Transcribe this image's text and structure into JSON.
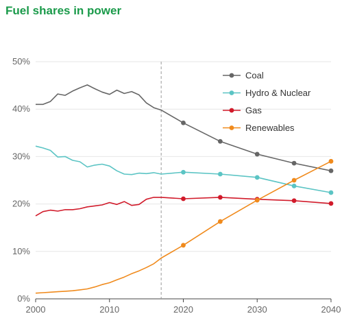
{
  "title": "Fuel shares in power",
  "colors": {
    "title": "#1a9a4a",
    "axis": "#444444",
    "grid": "#e6e6e6",
    "divider": "#999999",
    "coal": "#666666",
    "hydro": "#5bc4c4",
    "gas": "#d11a2a",
    "renewables": "#f08a1c"
  },
  "chart_data": {
    "type": "line",
    "title": "Fuel shares in power",
    "xlim": [
      2000,
      2040
    ],
    "ylim": [
      0,
      50
    ],
    "x_ticks": [
      2000,
      2010,
      2020,
      2030,
      2040
    ],
    "y_ticks": [
      0,
      10,
      20,
      30,
      40,
      50
    ],
    "x_tick_labels": [
      "2000",
      "2010",
      "2020",
      "2030",
      "2040"
    ],
    "y_tick_labels": [
      "0%",
      "10%",
      "20%",
      "30%",
      "40%",
      "50%"
    ],
    "divider_x": 2017,
    "grid": "horizontal",
    "legend_position": "top-right",
    "series": [
      {
        "name": "Coal",
        "color_key": "coal",
        "historical": [
          [
            2000,
            41.0
          ],
          [
            2001,
            41.0
          ],
          [
            2002,
            41.6
          ],
          [
            2003,
            43.2
          ],
          [
            2004,
            42.9
          ],
          [
            2005,
            43.8
          ],
          [
            2006,
            44.5
          ],
          [
            2007,
            45.1
          ],
          [
            2008,
            44.3
          ],
          [
            2009,
            43.6
          ],
          [
            2010,
            43.1
          ],
          [
            2011,
            44.0
          ],
          [
            2012,
            43.3
          ],
          [
            2013,
            43.7
          ],
          [
            2014,
            43.0
          ],
          [
            2015,
            41.3
          ],
          [
            2016,
            40.3
          ],
          [
            2017,
            39.8
          ]
        ],
        "projection": [
          [
            2017,
            39.8
          ],
          [
            2020,
            37.1
          ],
          [
            2025,
            33.2
          ],
          [
            2030,
            30.5
          ],
          [
            2035,
            28.6
          ],
          [
            2040,
            27.0
          ]
        ]
      },
      {
        "name": "Hydro & Nuclear",
        "color_key": "hydro",
        "historical": [
          [
            2000,
            32.2
          ],
          [
            2001,
            31.8
          ],
          [
            2002,
            31.3
          ],
          [
            2003,
            29.9
          ],
          [
            2004,
            30.0
          ],
          [
            2005,
            29.2
          ],
          [
            2006,
            28.9
          ],
          [
            2007,
            27.8
          ],
          [
            2008,
            28.2
          ],
          [
            2009,
            28.4
          ],
          [
            2010,
            28.0
          ],
          [
            2011,
            27.0
          ],
          [
            2012,
            26.3
          ],
          [
            2013,
            26.2
          ],
          [
            2014,
            26.5
          ],
          [
            2015,
            26.4
          ],
          [
            2016,
            26.6
          ],
          [
            2017,
            26.3
          ]
        ],
        "projection": [
          [
            2017,
            26.3
          ],
          [
            2020,
            26.7
          ],
          [
            2025,
            26.3
          ],
          [
            2030,
            25.6
          ],
          [
            2035,
            23.8
          ],
          [
            2040,
            22.4
          ]
        ]
      },
      {
        "name": "Gas",
        "color_key": "gas",
        "historical": [
          [
            2000,
            17.5
          ],
          [
            2001,
            18.4
          ],
          [
            2002,
            18.7
          ],
          [
            2003,
            18.5
          ],
          [
            2004,
            18.8
          ],
          [
            2005,
            18.8
          ],
          [
            2006,
            19.0
          ],
          [
            2007,
            19.4
          ],
          [
            2008,
            19.6
          ],
          [
            2009,
            19.8
          ],
          [
            2010,
            20.3
          ],
          [
            2011,
            19.9
          ],
          [
            2012,
            20.5
          ],
          [
            2013,
            19.7
          ],
          [
            2014,
            19.9
          ],
          [
            2015,
            21.0
          ],
          [
            2016,
            21.4
          ],
          [
            2017,
            21.4
          ]
        ],
        "projection": [
          [
            2017,
            21.4
          ],
          [
            2020,
            21.1
          ],
          [
            2025,
            21.4
          ],
          [
            2030,
            21.0
          ],
          [
            2035,
            20.7
          ],
          [
            2040,
            20.1
          ]
        ]
      },
      {
        "name": "Renewables",
        "color_key": "renewables",
        "historical": [
          [
            2000,
            1.2
          ],
          [
            2001,
            1.3
          ],
          [
            2002,
            1.4
          ],
          [
            2003,
            1.5
          ],
          [
            2004,
            1.6
          ],
          [
            2005,
            1.7
          ],
          [
            2006,
            1.9
          ],
          [
            2007,
            2.1
          ],
          [
            2008,
            2.5
          ],
          [
            2009,
            3.0
          ],
          [
            2010,
            3.4
          ],
          [
            2011,
            4.0
          ],
          [
            2012,
            4.6
          ],
          [
            2013,
            5.3
          ],
          [
            2014,
            5.9
          ],
          [
            2015,
            6.6
          ],
          [
            2016,
            7.4
          ],
          [
            2017,
            8.6
          ]
        ],
        "projection": [
          [
            2017,
            8.6
          ],
          [
            2020,
            11.3
          ],
          [
            2025,
            16.3
          ],
          [
            2030,
            20.8
          ],
          [
            2035,
            25.0
          ],
          [
            2040,
            29.0
          ]
        ]
      }
    ]
  }
}
